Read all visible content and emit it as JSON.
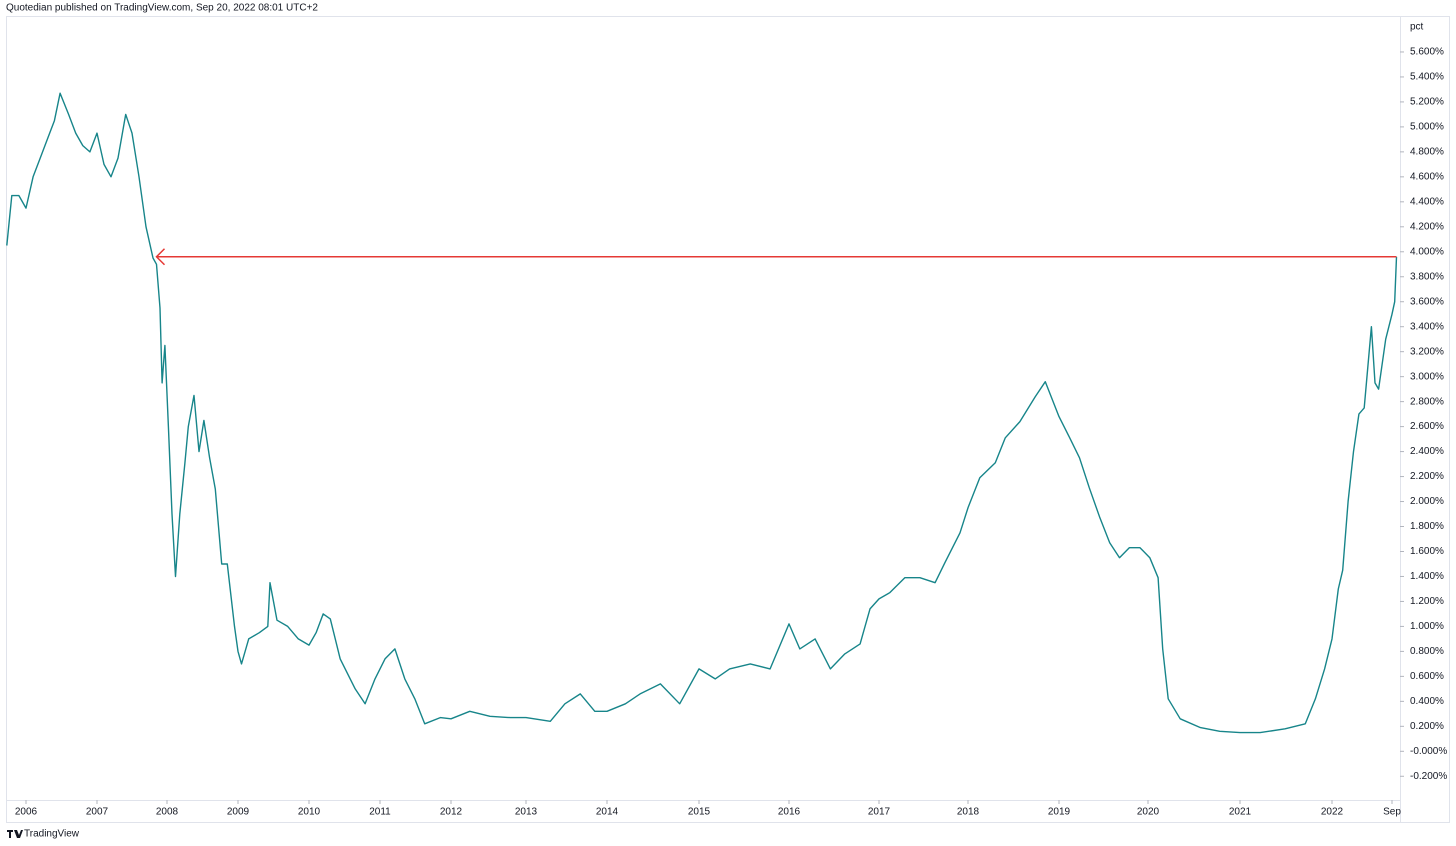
{
  "chart_data": {
    "type": "line",
    "header": "Quotedian published on TradingView.com, Sep 20, 2022 08:01 UTC+2",
    "y_axis_label": "pct",
    "footer": "TradingView",
    "color": "#17858a",
    "xlim": [
      2005.73,
      2022.74
    ],
    "xticks": [
      {
        "value": 2006,
        "label": "2006"
      },
      {
        "value": 2007,
        "label": "2007"
      },
      {
        "value": 2008,
        "label": "2008"
      },
      {
        "value": 2009,
        "label": "2009"
      },
      {
        "value": 2010,
        "label": "2010"
      },
      {
        "value": 2011,
        "label": "2011"
      },
      {
        "value": 2012,
        "label": "2012"
      },
      {
        "value": 2013,
        "label": "2013"
      },
      {
        "value": 2014,
        "label": "2014"
      },
      {
        "value": 2015,
        "label": "2015"
      },
      {
        "value": 2016,
        "label": "2016"
      },
      {
        "value": 2017,
        "label": "2017"
      },
      {
        "value": 2018,
        "label": "2018"
      },
      {
        "value": 2019,
        "label": "2019"
      },
      {
        "value": 2020,
        "label": "2020"
      },
      {
        "value": 2021,
        "label": "2021"
      },
      {
        "value": 2022,
        "label": "2022"
      },
      {
        "value": 2022.67,
        "label": "Sep"
      }
    ],
    "ylim": [
      -0.39,
      5.88
    ],
    "yticks": [
      {
        "value": -0.2,
        "label": "-0.200%"
      },
      {
        "value": 0,
        "label": "-0.000%"
      },
      {
        "value": 0.2,
        "label": "0.200%"
      },
      {
        "value": 0.4,
        "label": "0.400%"
      },
      {
        "value": 0.6,
        "label": "0.600%"
      },
      {
        "value": 0.8,
        "label": "0.800%"
      },
      {
        "value": 1.0,
        "label": "1.000%"
      },
      {
        "value": 1.2,
        "label": "1.200%"
      },
      {
        "value": 1.4,
        "label": "1.400%"
      },
      {
        "value": 1.6,
        "label": "1.600%"
      },
      {
        "value": 1.8,
        "label": "1.800%"
      },
      {
        "value": 2.0,
        "label": "2.000%"
      },
      {
        "value": 2.2,
        "label": "2.200%"
      },
      {
        "value": 2.4,
        "label": "2.400%"
      },
      {
        "value": 2.6,
        "label": "2.600%"
      },
      {
        "value": 2.8,
        "label": "2.800%"
      },
      {
        "value": 3.0,
        "label": "3.000%"
      },
      {
        "value": 3.2,
        "label": "3.200%"
      },
      {
        "value": 3.4,
        "label": "3.400%"
      },
      {
        "value": 3.6,
        "label": "3.600%"
      },
      {
        "value": 3.8,
        "label": "3.800%"
      },
      {
        "value": 4.0,
        "label": "4.000%"
      },
      {
        "value": 4.2,
        "label": "4.200%"
      },
      {
        "value": 4.4,
        "label": "4.400%"
      },
      {
        "value": 4.6,
        "label": "4.600%"
      },
      {
        "value": 4.8,
        "label": "4.800%"
      },
      {
        "value": 5.0,
        "label": "5.000%"
      },
      {
        "value": 5.2,
        "label": "5.200%"
      },
      {
        "value": 5.4,
        "label": "5.400%"
      },
      {
        "value": 5.6,
        "label": "5.600%"
      }
    ],
    "grid": false,
    "x": [
      2005.73,
      2005.8,
      2005.9,
      2006.0,
      2006.1,
      2006.2,
      2006.3,
      2006.4,
      2006.48,
      2006.6,
      2006.7,
      2006.8,
      2006.9,
      2007.0,
      2007.1,
      2007.2,
      2007.3,
      2007.41,
      2007.5,
      2007.6,
      2007.7,
      2007.8,
      2007.85,
      2007.9,
      2007.93,
      2007.97,
      2008.02,
      2008.07,
      2008.12,
      2008.18,
      2008.25,
      2008.3,
      2008.38,
      2008.45,
      2008.52,
      2008.6,
      2008.68,
      2008.77,
      2008.85,
      2008.95,
      2009.0,
      2009.05,
      2009.15,
      2009.3,
      2009.42,
      2009.45,
      2009.55,
      2009.7,
      2009.85,
      2010.0,
      2010.1,
      2010.2,
      2010.3,
      2010.44,
      2010.65,
      2010.79,
      2010.93,
      2011.07,
      2011.21,
      2011.35,
      2011.49,
      2011.63,
      2011.85,
      2012.0,
      2012.25,
      2012.52,
      2012.79,
      2013.0,
      2013.3,
      2013.48,
      2013.67,
      2013.85,
      2014.0,
      2014.2,
      2014.36,
      2014.58,
      2014.79,
      2015.0,
      2015.18,
      2015.34,
      2015.57,
      2015.79,
      2016.0,
      2016.12,
      2016.29,
      2016.46,
      2016.62,
      2016.79,
      2016.9,
      2017.0,
      2017.12,
      2017.29,
      2017.46,
      2017.63,
      2017.74,
      2017.91,
      2018.0,
      2018.13,
      2018.3,
      2018.41,
      2018.57,
      2018.74,
      2018.85,
      2019.0,
      2019.12,
      2019.23,
      2019.34,
      2019.46,
      2019.57,
      2019.68,
      2019.79,
      2019.91,
      2020.02,
      2020.11,
      2020.16,
      2020.22,
      2020.35,
      2020.57,
      2020.78,
      2021.0,
      2021.22,
      2021.49,
      2021.71,
      2021.82,
      2021.92,
      2022.0,
      2022.07,
      2022.12,
      2022.18,
      2022.24,
      2022.3,
      2022.36,
      2022.44,
      2022.48,
      2022.52,
      2022.6,
      2022.67,
      2022.7,
      2022.72
    ],
    "values": [
      4.05,
      4.45,
      4.45,
      4.35,
      4.6,
      4.75,
      4.9,
      5.05,
      5.27,
      5.1,
      4.95,
      4.85,
      4.8,
      4.95,
      4.7,
      4.6,
      4.75,
      5.1,
      4.95,
      4.6,
      4.2,
      3.95,
      3.9,
      3.55,
      2.95,
      3.25,
      2.6,
      1.9,
      1.4,
      1.9,
      2.3,
      2.6,
      2.85,
      2.4,
      2.65,
      2.35,
      2.1,
      1.5,
      1.5,
      1.0,
      0.8,
      0.7,
      0.9,
      0.95,
      1.0,
      1.35,
      1.05,
      1.0,
      0.9,
      0.85,
      0.95,
      1.1,
      1.06,
      0.74,
      0.5,
      0.38,
      0.58,
      0.74,
      0.82,
      0.58,
      0.42,
      0.22,
      0.27,
      0.26,
      0.32,
      0.28,
      0.27,
      0.27,
      0.24,
      0.38,
      0.46,
      0.32,
      0.32,
      0.38,
      0.46,
      0.54,
      0.38,
      0.66,
      0.58,
      0.66,
      0.7,
      0.66,
      1.02,
      0.82,
      0.9,
      0.66,
      0.78,
      0.86,
      1.14,
      1.22,
      1.27,
      1.39,
      1.39,
      1.35,
      1.51,
      1.75,
      1.95,
      2.19,
      2.31,
      2.51,
      2.64,
      2.84,
      2.96,
      2.68,
      2.51,
      2.35,
      2.11,
      1.87,
      1.67,
      1.55,
      1.63,
      1.63,
      1.55,
      1.39,
      0.82,
      0.42,
      0.26,
      0.19,
      0.16,
      0.15,
      0.15,
      0.18,
      0.22,
      0.42,
      0.66,
      0.9,
      1.3,
      1.45,
      2.0,
      2.4,
      2.7,
      2.75,
      3.4,
      2.95,
      2.9,
      3.3,
      3.5,
      3.6,
      3.96
    ],
    "reference_line": {
      "y": 3.96,
      "x": [
        2007.85,
        2022.72
      ],
      "color": "#e53935"
    }
  }
}
